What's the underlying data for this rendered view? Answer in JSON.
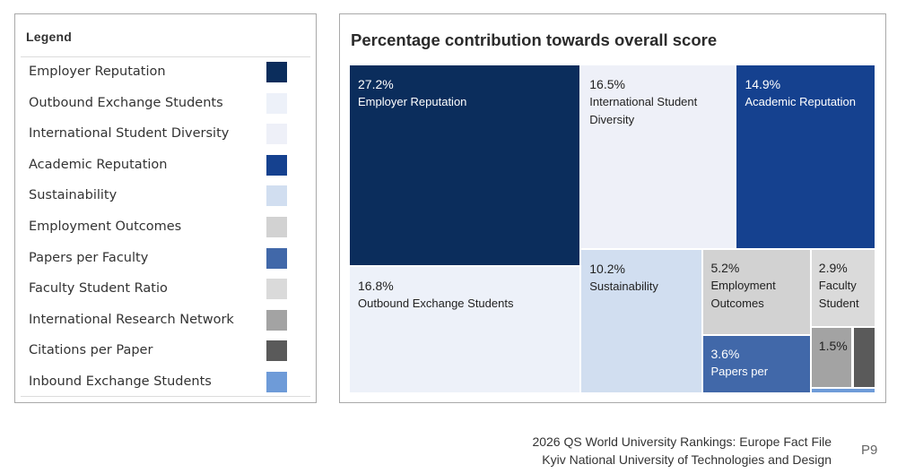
{
  "legend": {
    "title": "Legend",
    "items": [
      {
        "label": "Employer Reputation",
        "color": "#0b2d5c"
      },
      {
        "label": "Outbound Exchange Students",
        "color": "#edf1f9"
      },
      {
        "label": "International Student Diversity",
        "color": "#eef0f8"
      },
      {
        "label": "Academic Reputation",
        "color": "#15418f"
      },
      {
        "label": "Sustainability",
        "color": "#d1def0"
      },
      {
        "label": "Employment Outcomes",
        "color": "#d2d2d2"
      },
      {
        "label": "Papers per Faculty",
        "color": "#4168a9"
      },
      {
        "label": "Faculty Student Ratio",
        "color": "#dadada"
      },
      {
        "label": "International Research Network",
        "color": "#a3a3a3"
      },
      {
        "label": "Citations per Paper",
        "color": "#5a5a5a"
      },
      {
        "label": "Inbound Exchange Students",
        "color": "#6e9bd8"
      }
    ]
  },
  "chart_data": {
    "type": "treemap",
    "title": "Percentage contribution towards overall score",
    "values_unit": "%",
    "items": [
      {
        "name": "Employer Reputation",
        "value": 27.2,
        "label_pct": "27.2%",
        "label_name": "Employer Reputation",
        "color": "#0b2d5c",
        "text_color": "#ffffff"
      },
      {
        "name": "Outbound Exchange Students",
        "value": 16.8,
        "label_pct": "16.8%",
        "label_name": "Outbound Exchange Students",
        "color": "#edf1f9",
        "text_color": "#222222"
      },
      {
        "name": "International Student Diversity",
        "value": 16.5,
        "label_pct": "16.5%",
        "label_name": "International Student Diversity",
        "color": "#eef0f8",
        "text_color": "#222222"
      },
      {
        "name": "Academic Reputation",
        "value": 14.9,
        "label_pct": "14.9%",
        "label_name": "Academic Reputation",
        "color": "#15418f",
        "text_color": "#ffffff"
      },
      {
        "name": "Sustainability",
        "value": 10.2,
        "label_pct": "10.2%",
        "label_name": "Sustainability",
        "color": "#d1def0",
        "text_color": "#222222"
      },
      {
        "name": "Employment Outcomes",
        "value": 5.2,
        "label_pct": "5.2%",
        "label_name": "Employment Outcomes",
        "color": "#d2d2d2",
        "text_color": "#222222"
      },
      {
        "name": "Papers per Faculty",
        "value": 3.6,
        "label_pct": "3.6%",
        "label_name": "Papers per",
        "color": "#4168a9",
        "text_color": "#ffffff"
      },
      {
        "name": "Faculty Student Ratio",
        "value": 2.9,
        "label_pct": "2.9%",
        "label_name": "Faculty Student",
        "color": "#dadada",
        "text_color": "#222222"
      },
      {
        "name": "International Research Network",
        "value": 1.5,
        "label_pct": "1.5%",
        "label_name": "",
        "color": "#a3a3a3",
        "text_color": "#222222"
      },
      {
        "name": "Citations per Paper",
        "value": 0.9,
        "label_pct": "",
        "label_name": "",
        "color": "#5a5a5a",
        "text_color": "#ffffff"
      },
      {
        "name": "Inbound Exchange Students",
        "value": 0.3,
        "label_pct": "",
        "label_name": "",
        "color": "#6e9bd8",
        "text_color": "#ffffff"
      }
    ]
  },
  "footer": {
    "line1": "2026 QS World University Rankings: Europe Fact File",
    "line2": "Kyiv National University of Technologies and Design",
    "page": "P9"
  }
}
